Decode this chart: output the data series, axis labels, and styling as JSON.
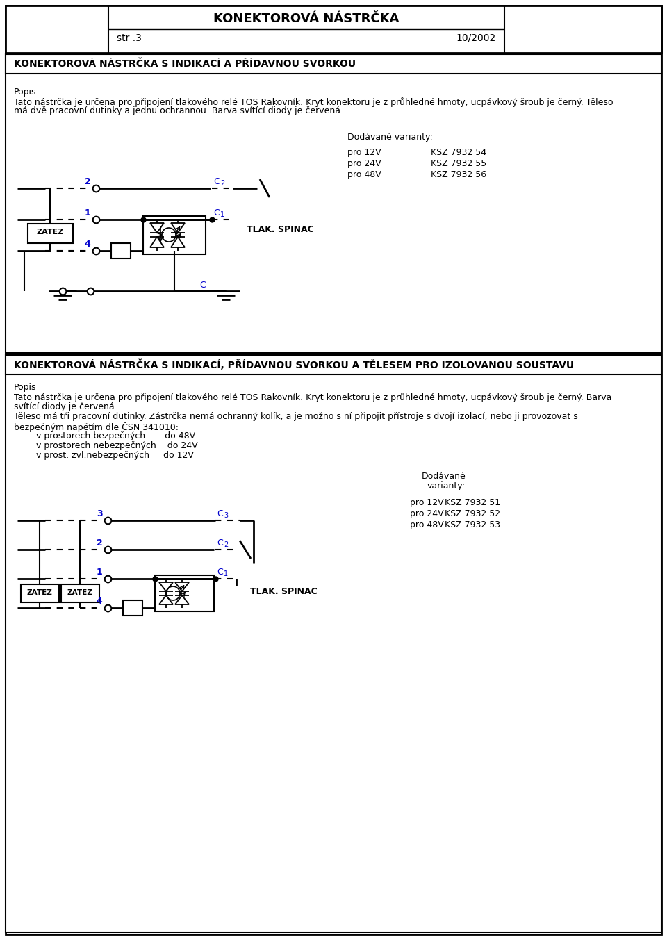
{
  "title": "KONEKTOROVÁ NÁSTRČKA",
  "subtitle_left": "str .3",
  "subtitle_right": "10/2002",
  "section1_header": "KONEKTOROVÁ NÁSTRČKA S INDIKACÍ A PŘÍDAVNOU SVORKOU",
  "section1_popis_label": "Popis",
  "section1_popis_line1": "Tato nástrčka je určena pro připojení tlakového relé TOS Rakovník. Kryt konektoru je z průhledné hmoty, ucpávkový šroub je černý. Těleso",
  "section1_popis_line2": "má dvě pracovní dutinky a jednu ochrannou. Barva svítící diody je červená.",
  "section1_dodavane": "Dodávané varianty:",
  "section1_variants": [
    [
      "pro 12V",
      "KSZ 7932 54"
    ],
    [
      "pro 24V",
      "KSZ 7932 55"
    ],
    [
      "pro 48V",
      "KSZ 7932 56"
    ]
  ],
  "section2_header": "KONEKTOROVÁ NÁSTRČKA S INDIKACÍ, PŘÍDAVNOU SVORKOU A TĚLESEM PRO IZOLOVANOU SOUSTAVU",
  "section2_popis_label": "Popis",
  "section2_popis_lines": [
    "Tato nástrčka je určena pro připojení tlakového relé TOS Rakovník. Kryt konektoru je z průhledné hmoty, ucpávkový šroub je černý. Barva",
    "svítící diody je červená.",
    "Těleso má tři pracovní dutinky. Zástrčka nemá ochranný kolík, a je možno s ní připojit přístroje s dvojí izolací, nebo ji provozovat s",
    "bezpečným napětím dle ČSN 341010:",
    "        v prostorech bezpečných       do 48V",
    "        v prostorech nebezpečných    do 24V",
    "        v prost. zvl.nebezpečných     do 12V"
  ],
  "section2_dodavane_line1": "Dodávané",
  "section2_dodavane_line2": "varianty:",
  "section2_variants": [
    [
      "pro 12V",
      "KSZ 7932 51"
    ],
    [
      "pro 24V",
      "KSZ 7932 52"
    ],
    [
      "pro 48V",
      "KSZ 7932 53"
    ]
  ],
  "bg_color": "#ffffff",
  "text_color": "#000000",
  "blue_color": "#0000cc"
}
